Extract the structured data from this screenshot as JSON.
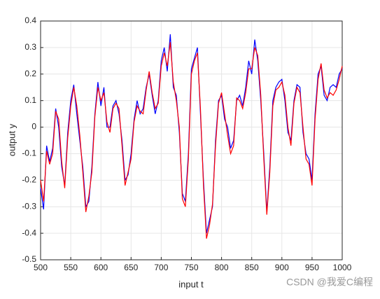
{
  "chart_data": {
    "type": "line",
    "xlabel": "input t",
    "ylabel": "output y",
    "x": [
      500,
      505,
      510,
      515,
      520,
      525,
      530,
      535,
      540,
      545,
      550,
      555,
      560,
      565,
      570,
      575,
      580,
      585,
      590,
      595,
      600,
      605,
      610,
      615,
      620,
      625,
      630,
      635,
      640,
      645,
      650,
      655,
      660,
      665,
      670,
      675,
      680,
      685,
      690,
      695,
      700,
      705,
      710,
      715,
      720,
      725,
      730,
      735,
      740,
      745,
      750,
      755,
      760,
      765,
      770,
      775,
      780,
      785,
      790,
      795,
      800,
      805,
      810,
      815,
      820,
      825,
      830,
      835,
      840,
      845,
      850,
      855,
      860,
      865,
      870,
      875,
      880,
      885,
      890,
      895,
      900,
      905,
      910,
      915,
      920,
      925,
      930,
      935,
      940,
      945,
      950,
      955,
      960,
      965,
      970,
      975,
      980,
      985,
      990,
      995,
      1000
    ],
    "series": [
      {
        "name": "blue",
        "color": "#0000ff",
        "values": [
          -0.23,
          -0.31,
          -0.07,
          -0.13,
          -0.08,
          0.07,
          0.0,
          -0.15,
          -0.22,
          -0.02,
          0.1,
          0.16,
          0.05,
          -0.05,
          -0.15,
          -0.3,
          -0.28,
          -0.15,
          0.05,
          0.17,
          0.08,
          0.15,
          0.0,
          0.0,
          0.08,
          0.1,
          0.05,
          -0.05,
          -0.2,
          -0.18,
          -0.1,
          0.03,
          0.1,
          0.05,
          0.07,
          0.15,
          0.2,
          0.12,
          0.05,
          0.1,
          0.25,
          0.3,
          0.21,
          0.35,
          0.15,
          0.12,
          -0.02,
          -0.25,
          -0.28,
          -0.1,
          0.22,
          0.26,
          0.3,
          0.05,
          -0.2,
          -0.4,
          -0.35,
          -0.3,
          -0.05,
          0.1,
          0.12,
          0.03,
          0.0,
          -0.08,
          -0.05,
          0.1,
          0.12,
          0.08,
          0.15,
          0.25,
          0.2,
          0.33,
          0.25,
          0.1,
          -0.1,
          -0.32,
          -0.15,
          0.1,
          0.15,
          0.17,
          0.18,
          0.1,
          -0.02,
          -0.05,
          0.1,
          0.16,
          0.15,
          -0.02,
          -0.1,
          -0.12,
          -0.2,
          0.05,
          0.2,
          0.23,
          0.12,
          0.1,
          0.15,
          0.16,
          0.15,
          0.2,
          0.22
        ]
      },
      {
        "name": "red",
        "color": "#ff0000",
        "values": [
          -0.2,
          -0.28,
          -0.09,
          -0.14,
          -0.1,
          0.06,
          0.03,
          -0.13,
          -0.23,
          -0.04,
          0.08,
          0.15,
          0.08,
          -0.03,
          -0.17,
          -0.32,
          -0.26,
          -0.17,
          0.04,
          0.15,
          0.1,
          0.13,
          0.02,
          -0.02,
          0.07,
          0.09,
          0.07,
          -0.07,
          -0.22,
          -0.17,
          -0.12,
          0.02,
          0.08,
          0.06,
          0.05,
          0.14,
          0.21,
          0.13,
          0.07,
          0.09,
          0.23,
          0.28,
          0.23,
          0.32,
          0.17,
          0.1,
          0.0,
          -0.27,
          -0.3,
          -0.12,
          0.2,
          0.25,
          0.28,
          0.07,
          -0.22,
          -0.42,
          -0.37,
          -0.29,
          -0.07,
          0.09,
          0.13,
          0.05,
          -0.03,
          -0.1,
          -0.07,
          0.11,
          0.1,
          0.07,
          0.13,
          0.22,
          0.22,
          0.3,
          0.27,
          0.12,
          -0.12,
          -0.33,
          -0.17,
          0.08,
          0.14,
          0.15,
          0.17,
          0.12,
          0.0,
          -0.07,
          0.09,
          0.15,
          0.13,
          0.0,
          -0.12,
          -0.14,
          -0.22,
          0.03,
          0.18,
          0.24,
          0.14,
          0.11,
          0.13,
          0.12,
          0.14,
          0.18,
          0.23
        ]
      }
    ],
    "xlim": [
      500,
      1000
    ],
    "xticks": [
      500,
      550,
      600,
      650,
      700,
      750,
      800,
      850,
      900,
      950,
      1000
    ],
    "ylim": [
      -0.5,
      0.4
    ],
    "yticks": [
      -0.5,
      -0.4,
      -0.3,
      -0.2,
      -0.1,
      0,
      0.1,
      0.2,
      0.3,
      0.4
    ],
    "grid": true,
    "watermark": "CSDN @我爱C编程"
  }
}
